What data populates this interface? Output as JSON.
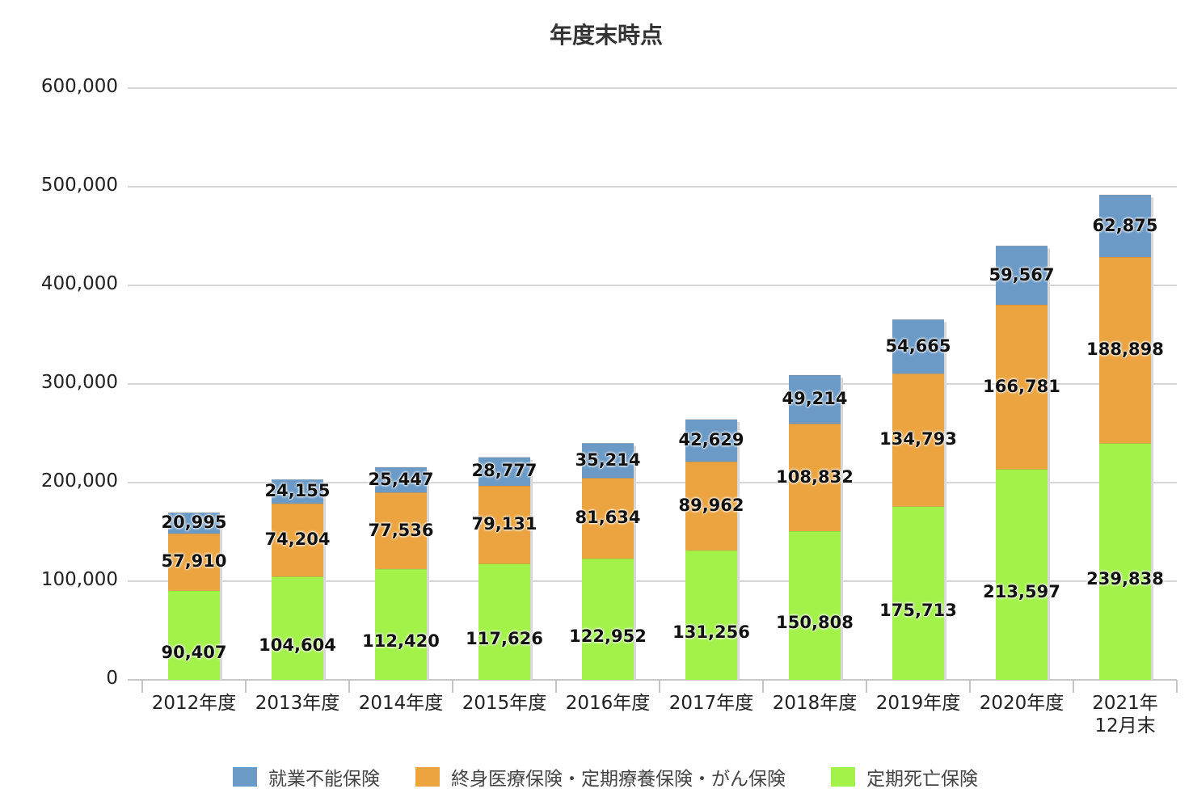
{
  "chart_data": {
    "type": "bar",
    "stacked": true,
    "title": "年度末時点",
    "categories": [
      "2012年度",
      "2013年度",
      "2014年度",
      "2015年度",
      "2016年度",
      "2017年度",
      "2018年度",
      "2019年度",
      "2020年度",
      "2021年\n12月末"
    ],
    "series": [
      {
        "name": "定期死亡保険",
        "color": "#a2f24a",
        "values": [
          90407,
          104604,
          112420,
          117626,
          122952,
          131256,
          150808,
          175713,
          213597,
          239838
        ]
      },
      {
        "name": "終身医療保険・定期療養保険・がん保険",
        "color": "#eba43f",
        "values": [
          57910,
          74204,
          77536,
          79131,
          81634,
          89962,
          108832,
          134793,
          166781,
          188898
        ]
      },
      {
        "name": "就業不能保険",
        "color": "#6b9ac6",
        "values": [
          20995,
          24155,
          25447,
          28777,
          35214,
          42629,
          49214,
          54665,
          59567,
          62875
        ]
      }
    ],
    "data_labels": [
      [
        "90,407",
        "104,604",
        "112,420",
        "117,626",
        "122,952",
        "131,256",
        "150,808",
        "175,713",
        "213,597",
        "239,838"
      ],
      [
        "57,910",
        "74,204",
        "77,536",
        "79,131",
        "81,634",
        "89,962",
        "108,832",
        "134,793",
        "166,781",
        "188,898"
      ],
      [
        "20,995",
        "24,155",
        "25,447",
        "28,777",
        "35,214",
        "42,629",
        "49,214",
        "54,665",
        "59,567",
        "62,875"
      ]
    ],
    "ylim": [
      0,
      600000
    ],
    "y_ticks": [
      0,
      100000,
      200000,
      300000,
      400000,
      500000,
      600000
    ],
    "y_tick_labels": [
      "0",
      "100,000",
      "200,000",
      "300,000",
      "400,000",
      "500,000",
      "600,000"
    ],
    "grid": true,
    "legend": {
      "position": "bottom",
      "items": [
        {
          "name": "就業不能保険",
          "color": "#6b9ac6"
        },
        {
          "name": "終身医療保険・定期療養保険・がん保険",
          "color": "#eba43f"
        },
        {
          "name": "定期死亡保険",
          "color": "#a2f24a"
        }
      ]
    }
  }
}
